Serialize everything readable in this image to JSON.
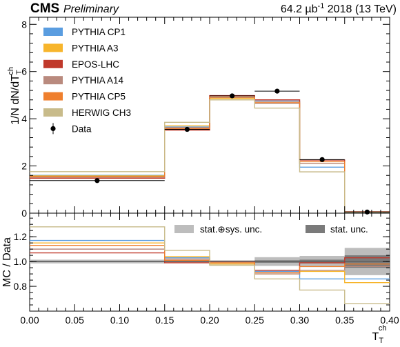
{
  "header": {
    "experiment": "CMS",
    "status": "Preliminary",
    "lumi_prefix": "64.2 µb",
    "lumi_exp": "-1",
    "lumi_suffix": " 2018 (13 TeV)"
  },
  "chart_data": [
    {
      "type": "histogram",
      "panel": "top",
      "ylabel_main": "1/N dN/dT",
      "ylabel_sub": "T",
      "ylabel_sup": "ch",
      "ylim": [
        0,
        8.3
      ],
      "yticks": [
        0,
        2,
        4,
        6,
        8
      ],
      "ytick_labels": [
        "0",
        "2",
        "4",
        "6",
        "8"
      ],
      "legend_position": "top-left",
      "bin_edges": [
        0.0,
        0.15,
        0.2,
        0.25,
        0.3,
        0.35,
        0.4
      ],
      "series": [
        {
          "name": "PYTHIA CP1",
          "color": "#5a9de0",
          "values": [
            1.6,
            3.65,
            4.88,
            4.75,
            1.95,
            0.04
          ]
        },
        {
          "name": "PYTHIA A3",
          "color": "#f7b52c",
          "values": [
            1.58,
            3.7,
            4.86,
            4.65,
            2.1,
            0.05
          ]
        },
        {
          "name": "EPOS-LHC",
          "color": "#c0392b",
          "values": [
            1.48,
            3.52,
            4.98,
            4.8,
            2.25,
            0.06
          ]
        },
        {
          "name": "PYTHIA A14",
          "color": "#b98a7e",
          "values": [
            1.52,
            3.62,
            4.9,
            4.65,
            2.1,
            0.05
          ]
        },
        {
          "name": "PYTHIA CP5",
          "color": "#ef7f2d",
          "values": [
            1.55,
            3.58,
            4.92,
            4.7,
            2.18,
            0.05
          ]
        },
        {
          "name": "HERWIG CH3",
          "color": "#c8bb8a",
          "values": [
            1.76,
            3.85,
            4.8,
            4.45,
            1.75,
            0.03
          ]
        }
      ],
      "data": {
        "name": "Data",
        "x": [
          0.075,
          0.175,
          0.225,
          0.275,
          0.325,
          0.375
        ],
        "y": [
          1.38,
          3.55,
          4.97,
          5.17,
          2.27,
          0.05
        ],
        "xerr": [
          0.075,
          0.025,
          0.025,
          0.025,
          0.025,
          0.025
        ]
      }
    },
    {
      "type": "histogram",
      "panel": "ratio",
      "ylabel": "MC / Data",
      "xlabel_main": "T",
      "xlabel_sub": "T",
      "xlabel_sup": "ch",
      "xlim": [
        0.0,
        0.4
      ],
      "xticks": [
        0.0,
        0.05,
        0.1,
        0.15,
        0.2,
        0.25,
        0.3,
        0.35,
        0.4
      ],
      "xtick_labels": [
        "0.00",
        "0.05",
        "0.10",
        "0.15",
        "0.20",
        "0.25",
        "0.30",
        "0.35",
        "0.40"
      ],
      "ylim": [
        0.6,
        1.39
      ],
      "yticks": [
        0.8,
        1.0,
        1.2
      ],
      "ytick_labels": [
        "0.8",
        "1.0",
        "1.2"
      ],
      "bin_edges": [
        0.0,
        0.15,
        0.2,
        0.25,
        0.3,
        0.35,
        0.4
      ],
      "band_labels": {
        "total": "stat.⊕sys. unc.",
        "stat": "stat. unc."
      },
      "band_colors": {
        "total": "#bdbdbd",
        "stat": "#7a7a7a"
      },
      "total_unc": [
        0.015,
        0.01,
        0.01,
        0.035,
        0.045,
        0.11
      ],
      "stat_unc": [
        0.005,
        0.005,
        0.005,
        0.01,
        0.015,
        0.05
      ],
      "series": [
        {
          "name": "PYTHIA CP1",
          "color": "#5a9de0",
          "values": [
            1.17,
            1.03,
            0.98,
            0.92,
            0.86,
            0.86
          ]
        },
        {
          "name": "PYTHIA A3",
          "color": "#f7b52c",
          "values": [
            1.15,
            1.04,
            0.98,
            0.9,
            0.92,
            0.83
          ]
        },
        {
          "name": "EPOS-LHC",
          "color": "#c0392b",
          "values": [
            1.07,
            0.99,
            1.0,
            0.93,
            0.99,
            1.03
          ]
        },
        {
          "name": "PYTHIA A14",
          "color": "#b98a7e",
          "values": [
            1.1,
            1.02,
            0.99,
            0.9,
            0.93,
            0.96
          ]
        },
        {
          "name": "PYTHIA CP5",
          "color": "#ef7f2d",
          "values": [
            1.13,
            1.01,
            0.99,
            0.91,
            0.96,
            0.98
          ]
        },
        {
          "name": "HERWIG CH3",
          "color": "#c8bb8a",
          "values": [
            1.28,
            1.09,
            0.97,
            0.86,
            0.77,
            0.66
          ]
        }
      ]
    }
  ]
}
